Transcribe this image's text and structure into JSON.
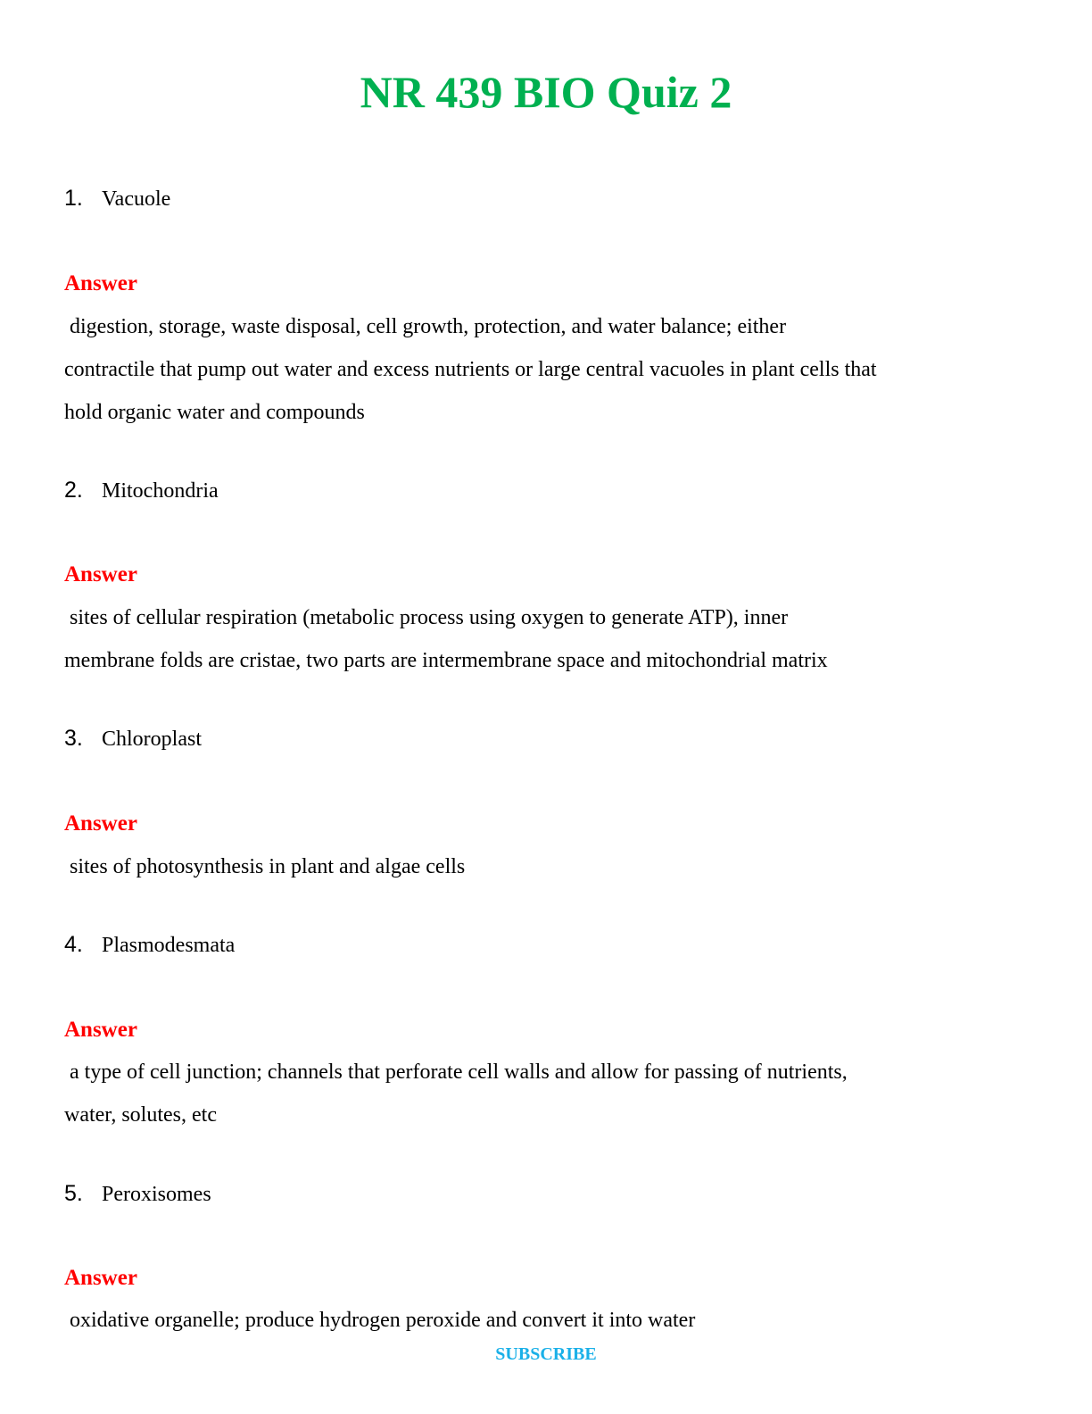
{
  "title": "NR 439 BIO Quiz 2",
  "answer_label": "Answer",
  "questions": [
    {
      "number": "1.",
      "term": "Vacuole",
      "answer_lines": [
        " digestion, storage, waste disposal, cell growth, protection, and water balance; either",
        "contractile that pump out water and excess nutrients or large central vacuoles in plant cells that",
        "hold organic water and compounds"
      ]
    },
    {
      "number": "2.",
      "term": "Mitochondria",
      "answer_lines": [
        " sites of cellular respiration (metabolic process using oxygen to generate ATP), inner",
        "membrane folds are cristae, two parts are intermembrane space and mitochondrial matrix"
      ]
    },
    {
      "number": "3.",
      "term": "Chloroplast",
      "answer_lines": [
        " sites of photosynthesis in plant and algae cells"
      ]
    },
    {
      "number": "4.",
      "term": "Plasmodesmata",
      "answer_lines": [
        " a type of cell junction; channels that perforate cell walls and allow for passing of nutrients,",
        "water, solutes, etc"
      ]
    },
    {
      "number": "5.",
      "term": "Peroxisomes",
      "answer_lines": [
        " oxidative organelle; produce hydrogen peroxide and convert it into water"
      ]
    }
  ],
  "footer": {
    "subscribe_label": "SUBSCRIBE"
  },
  "colors": {
    "title": "#00b050",
    "answer_label": "#ff0000",
    "subscribe": "#1ab0e8"
  }
}
